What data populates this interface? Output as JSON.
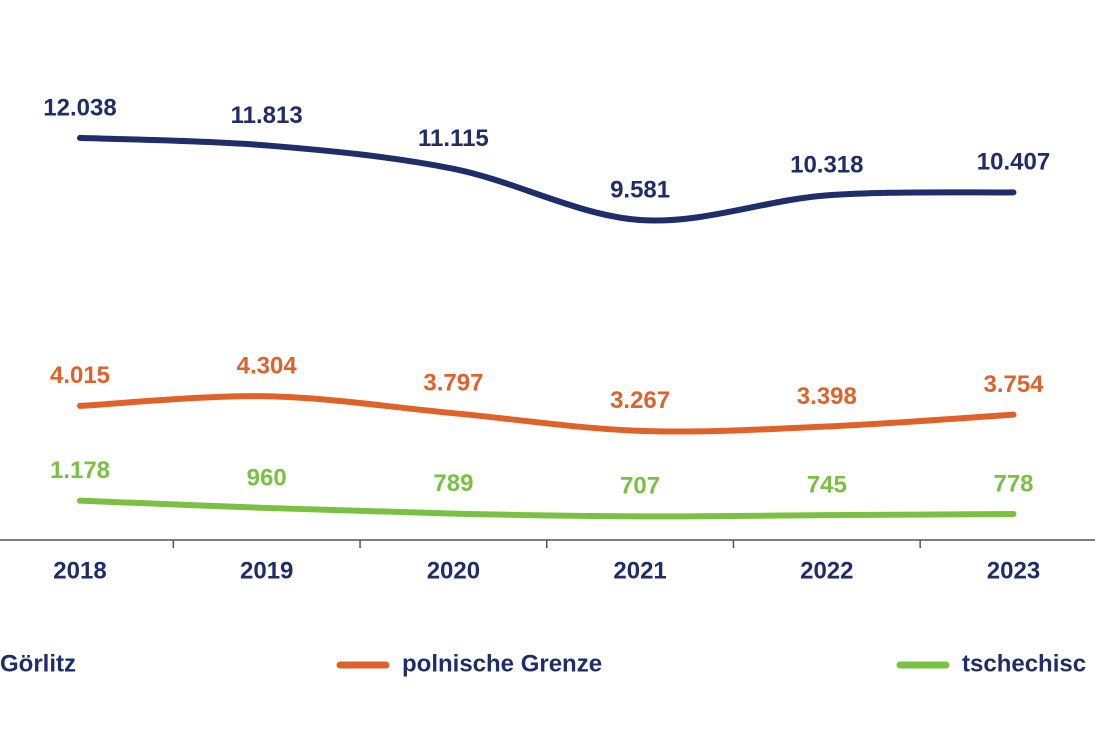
{
  "chart_data": {
    "type": "line",
    "categories": [
      "2018",
      "2019",
      "2020",
      "2021",
      "2022",
      "2023"
    ],
    "series": [
      {
        "name": "Görlitz",
        "color": "#1f2d6b",
        "values": [
          12038,
          11813,
          11115,
          9581,
          10318,
          10407
        ],
        "value_labels": [
          "12.038",
          "11.813",
          "11.115",
          "9.581",
          "10.318",
          "10.407"
        ]
      },
      {
        "name": "polnische Grenze",
        "color": "#e0622a",
        "values": [
          4015,
          4304,
          3797,
          3267,
          3398,
          3754
        ],
        "value_labels": [
          "4.015",
          "4.304",
          "3.797",
          "3.267",
          "3.398",
          "3.754"
        ]
      },
      {
        "name": "tschechisc",
        "color": "#7ac143",
        "values": [
          1178,
          960,
          789,
          707,
          745,
          778
        ],
        "value_labels": [
          "1.178",
          "960",
          "789",
          "707",
          "745",
          "778"
        ]
      }
    ]
  }
}
